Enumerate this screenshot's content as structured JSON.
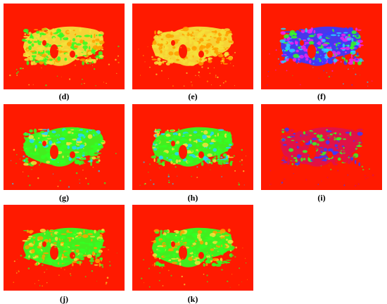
{
  "figure": {
    "panels": [
      {
        "id": "d",
        "label": "(d)",
        "palette": "yellow-green"
      },
      {
        "id": "e",
        "label": "(e)",
        "palette": "yellow"
      },
      {
        "id": "f",
        "label": "(f)",
        "palette": "blue-magenta"
      },
      {
        "id": "g",
        "label": "(g)",
        "palette": "green"
      },
      {
        "id": "h",
        "label": "(h)",
        "palette": "green"
      },
      {
        "id": "i",
        "label": "(i)",
        "palette": "crimson-blue"
      },
      {
        "id": "j",
        "label": "(j)",
        "palette": "green-yellow"
      },
      {
        "id": "k",
        "label": "(k)",
        "palette": "green-yellow"
      }
    ],
    "colors": {
      "background": "#ff1a00",
      "yellow": "#f5e23a",
      "orange": "#ffa000",
      "green": "#33ff22",
      "cyan": "#22d6ff",
      "blue": "#3a3aff",
      "magenta": "#ee22ee",
      "crimson": "#e0104a"
    }
  }
}
